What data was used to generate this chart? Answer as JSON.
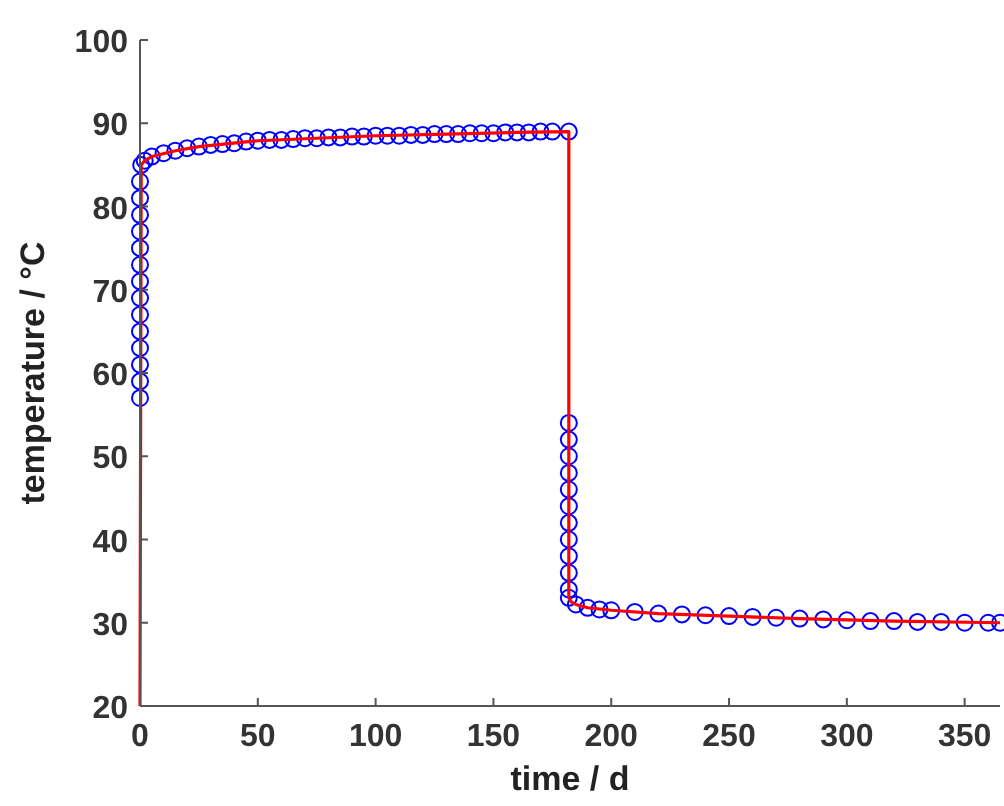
{
  "chart_data": {
    "type": "line",
    "xlabel": "time / d",
    "ylabel": "temperature / °C",
    "xlim": [
      0,
      365
    ],
    "ylim": [
      20,
      100
    ],
    "xticks": [
      0,
      50,
      100,
      150,
      200,
      250,
      300,
      350
    ],
    "yticks": [
      20,
      30,
      40,
      50,
      60,
      70,
      80,
      90,
      100
    ],
    "series": [
      {
        "type": "scatter",
        "marker": "circle",
        "color": "#0000ff",
        "x": [
          0,
          0,
          0,
          0,
          0,
          0,
          0,
          0,
          0,
          0,
          0,
          0,
          0,
          0,
          0.5,
          2,
          5,
          10,
          15,
          20,
          25,
          30,
          35,
          40,
          45,
          50,
          55,
          60,
          65,
          70,
          75,
          80,
          85,
          90,
          95,
          100,
          105,
          110,
          115,
          120,
          125,
          130,
          135,
          140,
          145,
          150,
          155,
          160,
          165,
          170,
          175,
          182,
          182,
          182,
          182,
          182,
          182,
          182,
          182,
          182,
          182,
          182,
          182,
          182,
          185,
          190,
          195,
          200,
          210,
          220,
          230,
          240,
          250,
          260,
          270,
          280,
          290,
          300,
          310,
          320,
          330,
          340,
          350,
          360,
          365
        ],
        "values": [
          57,
          59,
          61,
          63,
          65,
          67,
          69,
          71,
          73,
          75,
          77,
          79,
          81,
          83,
          85,
          85.5,
          86,
          86.4,
          86.7,
          87,
          87.2,
          87.4,
          87.5,
          87.6,
          87.8,
          87.9,
          88,
          88,
          88.1,
          88.2,
          88.2,
          88.3,
          88.3,
          88.4,
          88.4,
          88.5,
          88.5,
          88.5,
          88.6,
          88.6,
          88.7,
          88.7,
          88.7,
          88.8,
          88.8,
          88.8,
          88.9,
          88.9,
          88.9,
          89,
          89,
          89,
          54,
          52,
          50,
          48,
          46,
          44,
          42,
          40,
          38,
          36,
          34,
          33,
          32.2,
          31.8,
          31.6,
          31.5,
          31.3,
          31.1,
          31,
          30.9,
          30.8,
          30.7,
          30.6,
          30.5,
          30.4,
          30.3,
          30.2,
          30.2,
          30.1,
          30.1,
          30,
          30,
          30
        ]
      },
      {
        "color": "#ff0000",
        "line_style": "solid",
        "x": [
          0,
          0.5,
          2,
          5,
          15,
          25,
          50,
          75,
          100,
          130,
          160,
          182,
          182,
          183,
          185,
          190,
          200,
          220,
          250,
          280,
          320,
          365
        ],
        "values": [
          20,
          85,
          85.5,
          86,
          86.7,
          87.2,
          87.9,
          88.2,
          88.5,
          88.7,
          88.9,
          89,
          33,
          32.5,
          32.2,
          31.8,
          31.5,
          31.1,
          30.8,
          30.5,
          30.2,
          30
        ]
      }
    ]
  }
}
